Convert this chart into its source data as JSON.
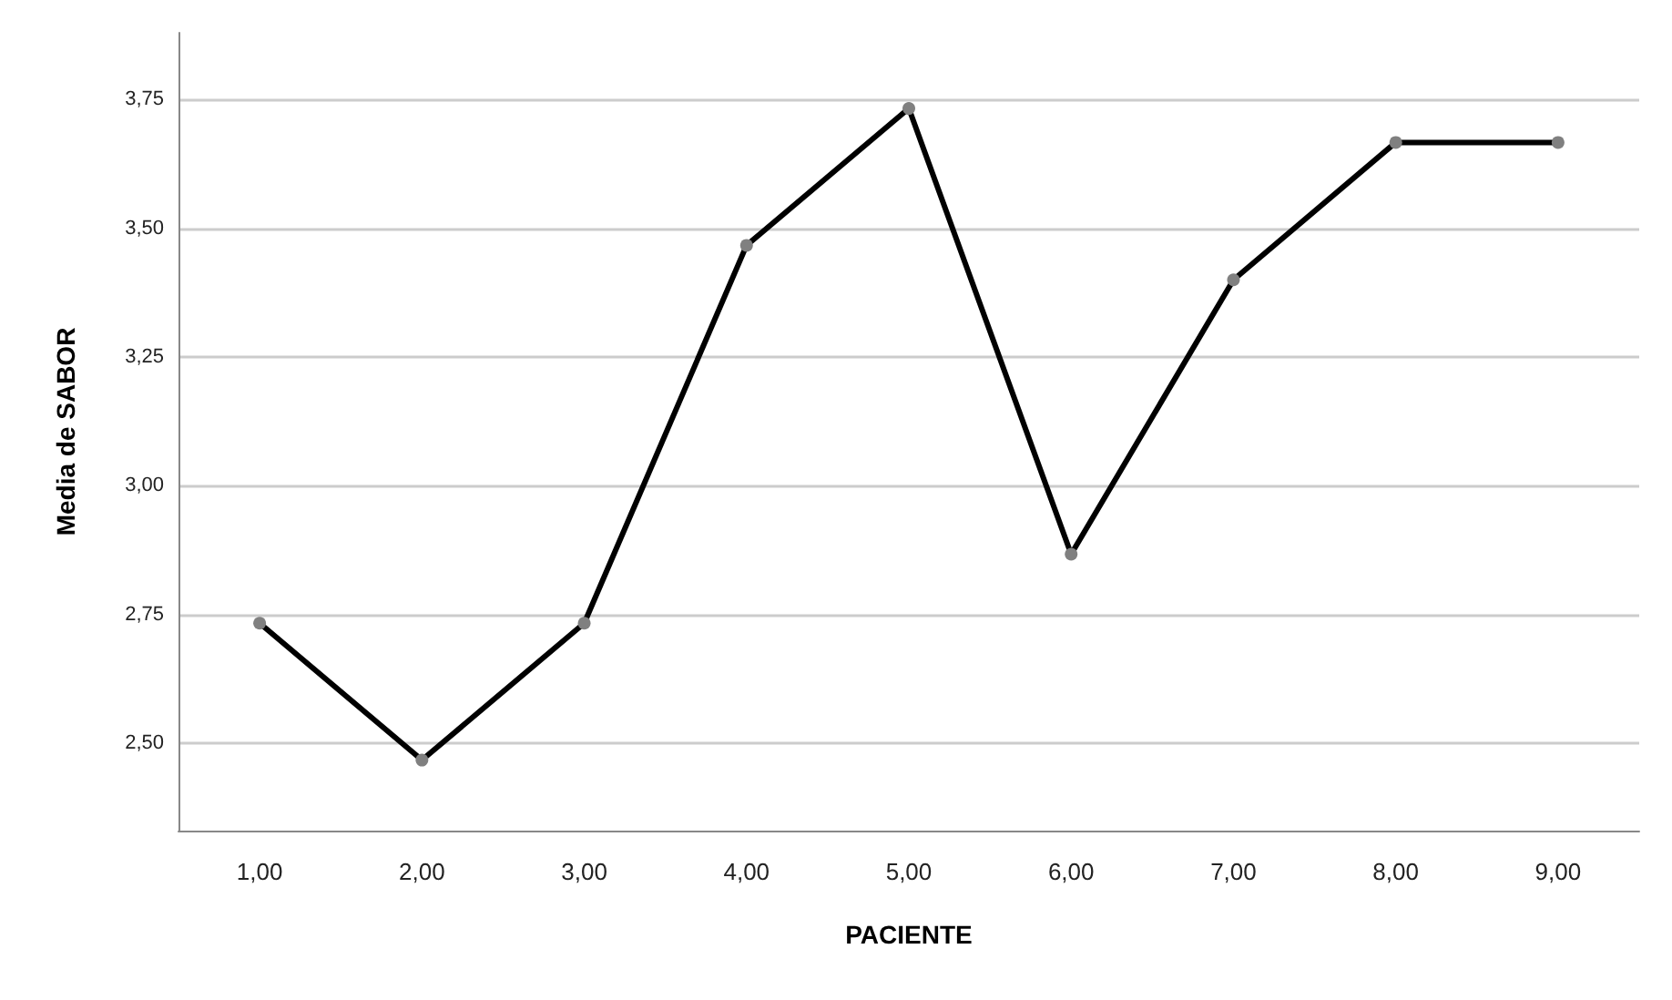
{
  "chart_data": {
    "type": "line",
    "xlabel": "PACIENTE",
    "ylabel": "Media de SABOR",
    "categories": [
      "1,00",
      "2,00",
      "3,00",
      "4,00",
      "5,00",
      "6,00",
      "7,00",
      "8,00",
      "9,00"
    ],
    "series": [
      {
        "color": "#000000",
        "values": [
          2.733,
          2.467,
          2.733,
          3.467,
          3.733,
          2.867,
          3.4,
          3.667,
          3.667
        ]
      }
    ],
    "ylim": [
      2.33,
      3.88
    ],
    "yticks": [
      {
        "value": 2.5,
        "label": "2,50"
      },
      {
        "value": 2.75,
        "label": "2,75"
      },
      {
        "value": 3,
        "label": "3,00"
      },
      {
        "value": 3.25,
        "label": "3,25"
      },
      {
        "value": 3.5,
        "label": "3,50"
      },
      {
        "value": 3.75,
        "label": "3,75"
      }
    ],
    "grid": "y",
    "marker": "circle",
    "line_style": "solid"
  }
}
